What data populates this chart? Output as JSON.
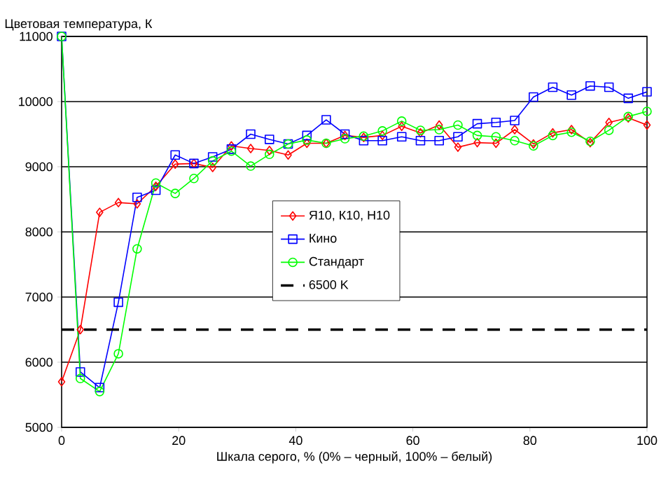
{
  "chart_data": {
    "type": "line",
    "ylabel": "Цветовая температура, К",
    "xlabel": "Шкала серого, % (0% – черный, 100% – белый)",
    "x": [
      0,
      3.2,
      6.5,
      9.7,
      12.9,
      16.1,
      19.4,
      22.6,
      25.8,
      29.0,
      32.3,
      35.5,
      38.7,
      41.9,
      45.2,
      48.4,
      51.6,
      54.8,
      58.1,
      61.3,
      64.5,
      67.7,
      71.0,
      74.2,
      77.4,
      80.6,
      83.9,
      87.1,
      90.3,
      93.5,
      96.8,
      100
    ],
    "series": [
      {
        "name": "Я10, К10, Н10",
        "color": "#ff0000",
        "marker": "diamond",
        "values": [
          5700,
          6500,
          8300,
          8450,
          8430,
          8700,
          9040,
          9050,
          8990,
          9320,
          9280,
          9250,
          9180,
          9360,
          9360,
          9480,
          9450,
          9480,
          9620,
          9520,
          9640,
          9300,
          9370,
          9360,
          9570,
          9350,
          9520,
          9570,
          9370,
          9680,
          9750,
          9640
        ]
      },
      {
        "name": "Кино",
        "color": "#0000ff",
        "marker": "square",
        "values": [
          11000,
          5850,
          5610,
          6920,
          8530,
          8640,
          9180,
          9050,
          9150,
          9270,
          9500,
          9420,
          9350,
          9480,
          9720,
          9500,
          9400,
          9400,
          9460,
          9400,
          9400,
          9460,
          9660,
          9680,
          9710,
          10070,
          10220,
          10100,
          10240,
          10220,
          10050,
          10150
        ]
      },
      {
        "name": "Стандарт",
        "color": "#00ff00",
        "marker": "circle",
        "values": [
          11000,
          5750,
          5550,
          6130,
          7740,
          8750,
          8590,
          8820,
          9090,
          9240,
          9010,
          9190,
          9350,
          9410,
          9360,
          9430,
          9470,
          9550,
          9700,
          9560,
          9570,
          9640,
          9480,
          9460,
          9400,
          9320,
          9480,
          9530,
          9390,
          9560,
          9770,
          9850
        ]
      }
    ],
    "ref_lines": [
      {
        "axis": "y",
        "value": 6500,
        "label": "6500 K",
        "color": "#000000",
        "line_style": "dashed"
      }
    ],
    "xlim": [
      0,
      100
    ],
    "xticks": [
      0,
      20,
      40,
      60,
      80,
      100
    ],
    "ylim": [
      5000,
      11000
    ],
    "yticks": [
      5000,
      6000,
      7000,
      8000,
      9000,
      10000,
      11000
    ],
    "grid": "y",
    "legend": "right",
    "line_style": "solid"
  }
}
